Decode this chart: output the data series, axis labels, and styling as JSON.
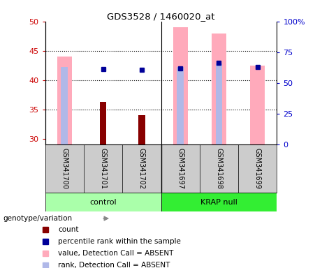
{
  "title": "GDS3528 / 1460020_at",
  "samples": [
    "GSM341700",
    "GSM341701",
    "GSM341702",
    "GSM341697",
    "GSM341698",
    "GSM341699"
  ],
  "ylim_left": [
    29,
    50
  ],
  "ylim_right": [
    0,
    100
  ],
  "yticks_left": [
    30,
    35,
    40,
    45,
    50
  ],
  "ytick_labels_left": [
    "30",
    "35",
    "40",
    "45",
    "50"
  ],
  "yticks_right": [
    0,
    25,
    50,
    75,
    100
  ],
  "ytick_labels_right": [
    "0",
    "25",
    "50",
    "75",
    "100%"
  ],
  "pink_bar_tops": [
    44.0,
    null,
    null,
    49.0,
    48.0,
    42.5
  ],
  "light_blue_bar_tops": [
    42.2,
    null,
    null,
    42.2,
    42.8,
    null
  ],
  "dark_red_bar_tops": [
    null,
    36.3,
    34.0,
    null,
    null,
    null
  ],
  "blue_square_y": [
    null,
    41.9,
    41.8,
    42.0,
    42.9,
    42.2
  ],
  "bar_bottom": 29,
  "pink_color": "#ffaabb",
  "light_blue_color": "#b0b8e8",
  "dark_red_color": "#880000",
  "blue_color": "#000099",
  "red_axis_color": "#cc0000",
  "blue_axis_color": "#0000cc",
  "pink_bar_width": 0.38,
  "light_blue_bar_width": 0.18,
  "dark_red_bar_width": 0.18,
  "control_color": "#aaffaa",
  "krap_color": "#33ee33",
  "sample_bg_color": "#cccccc",
  "legend_items": [
    {
      "label": "count",
      "color": "#880000"
    },
    {
      "label": "percentile rank within the sample",
      "color": "#000099"
    },
    {
      "label": "value, Detection Call = ABSENT",
      "color": "#ffaabb"
    },
    {
      "label": "rank, Detection Call = ABSENT",
      "color": "#b0b8e8"
    }
  ]
}
